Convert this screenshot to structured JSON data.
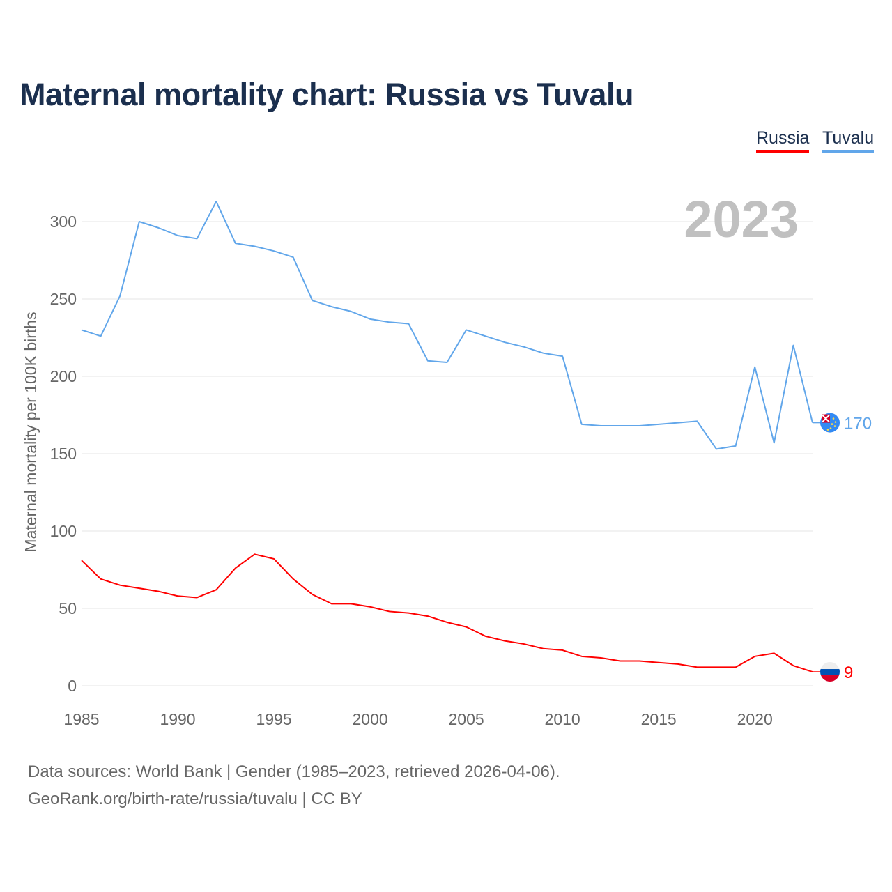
{
  "title": "Maternal mortality chart: Russia vs Tuvalu",
  "chart_data": {
    "type": "line",
    "title": "Maternal mortality chart: Russia vs Tuvalu",
    "xlabel": "",
    "ylabel": "Maternal mortality per 100K births",
    "xlim": [
      1985,
      2023
    ],
    "ylim": [
      0,
      320
    ],
    "yticks": [
      0,
      50,
      100,
      150,
      200,
      250,
      300
    ],
    "xticks": [
      1985,
      1990,
      1995,
      2000,
      2005,
      2010,
      2015,
      2020
    ],
    "grid": true,
    "legend": "top-right",
    "year_label": "2023",
    "x": [
      1985,
      1986,
      1987,
      1988,
      1989,
      1990,
      1991,
      1992,
      1993,
      1994,
      1995,
      1996,
      1997,
      1998,
      1999,
      2000,
      2001,
      2002,
      2003,
      2004,
      2005,
      2006,
      2007,
      2008,
      2009,
      2010,
      2011,
      2012,
      2013,
      2014,
      2015,
      2016,
      2017,
      2018,
      2019,
      2020,
      2021,
      2022,
      2023
    ],
    "series": [
      {
        "name": "Russia",
        "color": "#ff0000",
        "end_label": "9",
        "values": [
          81,
          69,
          65,
          63,
          61,
          58,
          57,
          62,
          76,
          85,
          82,
          69,
          59,
          53,
          53,
          51,
          48,
          47,
          45,
          41,
          38,
          32,
          29,
          27,
          24,
          23,
          19,
          18,
          16,
          16,
          15,
          14,
          12,
          12,
          12,
          19,
          21,
          13,
          9
        ]
      },
      {
        "name": "Tuvalu",
        "color": "#61a6ea",
        "end_label": "170",
        "values": [
          230,
          226,
          252,
          300,
          296,
          291,
          289,
          313,
          286,
          284,
          281,
          277,
          249,
          245,
          242,
          237,
          235,
          234,
          210,
          209,
          230,
          226,
          222,
          219,
          215,
          213,
          169,
          168,
          168,
          168,
          169,
          170,
          171,
          153,
          155,
          206,
          157,
          220,
          170
        ]
      }
    ]
  },
  "legend": {
    "russia": "Russia",
    "tuvalu": "Tuvalu"
  },
  "source": {
    "line1": "Data sources: World Bank | Gender (1985–2023, retrieved 2026-04-06).",
    "line2": "GeoRank.org/birth-rate/russia/tuvalu | CC BY"
  }
}
